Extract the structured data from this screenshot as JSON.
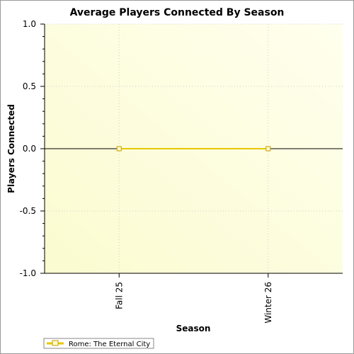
{
  "chart_data": {
    "type": "line",
    "title": "Average Players Connected By Season",
    "xlabel": "Season",
    "ylabel": "Players Connected",
    "categories": [
      "Fall 25",
      "Winter 26"
    ],
    "series": [
      {
        "name": "Rome: The Eternal City",
        "values": [
          0,
          0
        ],
        "color": "#e6c800"
      }
    ],
    "ylim": [
      -1.0,
      1.0
    ],
    "yticks": [
      "1.0",
      "0.5",
      "0.0",
      "-0.5",
      "-1.0"
    ],
    "ytick_values": [
      1.0,
      0.5,
      0.0,
      -0.5,
      -1.0
    ],
    "grid": true,
    "zero_line": true,
    "legend_position": "bottom-left",
    "colors": {
      "plot_bg_start": "#fbfbd0",
      "plot_bg_end": "#ffffee",
      "grid": "#cfcfcf",
      "marker_fill": "#ffffcc",
      "marker_stroke": "#c89a00"
    }
  }
}
